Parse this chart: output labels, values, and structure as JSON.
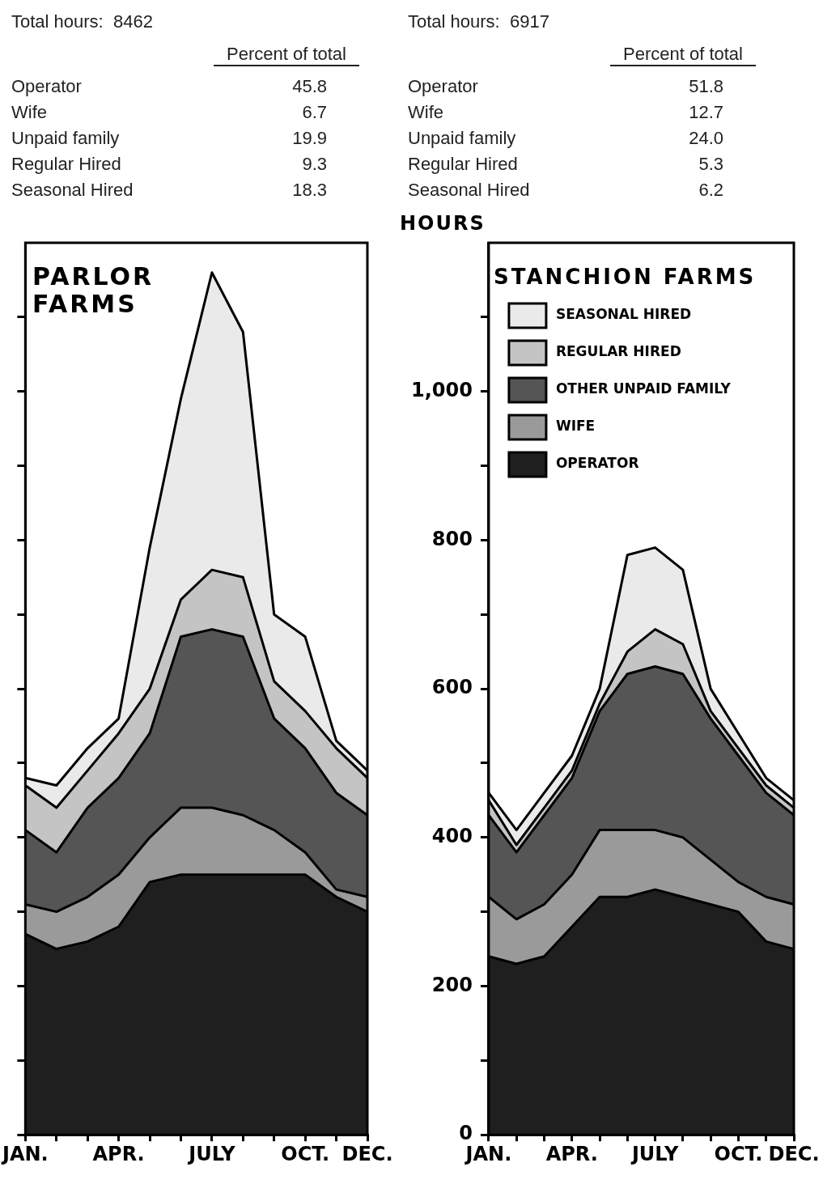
{
  "chart_data": [
    {
      "type": "area",
      "title": "PARLOR FARMS",
      "stacked": true,
      "tick_labels": "x",
      "categories": [
        "JAN.",
        null,
        null,
        "APR.",
        null,
        null,
        "JULY",
        null,
        null,
        "OCT.",
        null,
        "DEC."
      ],
      "ylim": [
        0,
        1200
      ],
      "yticks": [
        0,
        100,
        200,
        300,
        400,
        500,
        600,
        700,
        800,
        900,
        1000,
        1100
      ],
      "series": [
        {
          "color": "#1f1f1f",
          "values": [
            270,
            250,
            260,
            280,
            340,
            350,
            350,
            350,
            350,
            350,
            320,
            300
          ]
        },
        {
          "color": "#9a9a9a",
          "values": [
            40,
            50,
            60,
            70,
            60,
            90,
            90,
            80,
            60,
            30,
            10,
            20
          ]
        },
        {
          "color": "#555555",
          "values": [
            100,
            80,
            120,
            130,
            140,
            230,
            240,
            240,
            150,
            140,
            130,
            110
          ]
        },
        {
          "color": "#c4c4c4",
          "values": [
            60,
            60,
            50,
            60,
            60,
            50,
            80,
            80,
            50,
            50,
            60,
            50
          ]
        },
        {
          "color": "#eaeaea",
          "values": [
            10,
            30,
            30,
            20,
            190,
            270,
            400,
            330,
            90,
            100,
            10,
            10
          ]
        }
      ],
      "annotations": [
        "Total hours:  8462",
        "Percent of total",
        "Operator",
        "45.8",
        "Wife",
        "6.7",
        "Unpaid family",
        "19.9",
        "Regular Hired",
        "9.3",
        "Seasonal Hired",
        "18.3"
      ]
    },
    {
      "type": "area",
      "title": "STANCHION FARMS",
      "ylabel": "HOURS",
      "stacked": true,
      "legend": "top left",
      "categories": [
        "JAN.",
        null,
        null,
        "APR.",
        null,
        null,
        "JULY",
        null,
        null,
        "OCT.",
        null,
        "DEC."
      ],
      "ylim": [
        0,
        1200
      ],
      "yticks": [
        0,
        {
          "value": 100,
          "label": null
        },
        200,
        {
          "value": 300,
          "label": null
        },
        400,
        {
          "value": 500,
          "label": null
        },
        600,
        {
          "value": 700,
          "label": null
        },
        800,
        {
          "value": 900,
          "label": null
        },
        {
          "value": 1000,
          "label": "1,000"
        },
        {
          "value": 1100,
          "label": null
        }
      ],
      "series": [
        {
          "name": "OPERATOR",
          "color": "#1f1f1f",
          "values": [
            240,
            230,
            240,
            280,
            320,
            320,
            330,
            320,
            310,
            300,
            260,
            250
          ]
        },
        {
          "name": "WIFE",
          "color": "#9a9a9a",
          "values": [
            80,
            60,
            70,
            70,
            90,
            90,
            80,
            80,
            60,
            40,
            60,
            60
          ]
        },
        {
          "name": "OTHER UNPAID FAMILY",
          "color": "#555555",
          "values": [
            110,
            90,
            120,
            130,
            160,
            210,
            220,
            220,
            190,
            170,
            140,
            120
          ]
        },
        {
          "name": "REGULAR HIRED",
          "color": "#c4c4c4",
          "values": [
            20,
            10,
            10,
            10,
            10,
            30,
            50,
            40,
            10,
            10,
            10,
            10
          ]
        },
        {
          "name": "SEASONAL HIRED",
          "color": "#eaeaea",
          "values": [
            10,
            20,
            20,
            20,
            20,
            130,
            110,
            100,
            30,
            20,
            10,
            10
          ]
        }
      ],
      "annotations": [
        "Total hours:  6917",
        "Percent of total",
        "Operator",
        "51.8",
        "Wife",
        "12.7",
        "Unpaid family",
        "24.0",
        "Regular Hired",
        "5.3",
        "Seasonal Hired",
        "6.2"
      ]
    }
  ]
}
